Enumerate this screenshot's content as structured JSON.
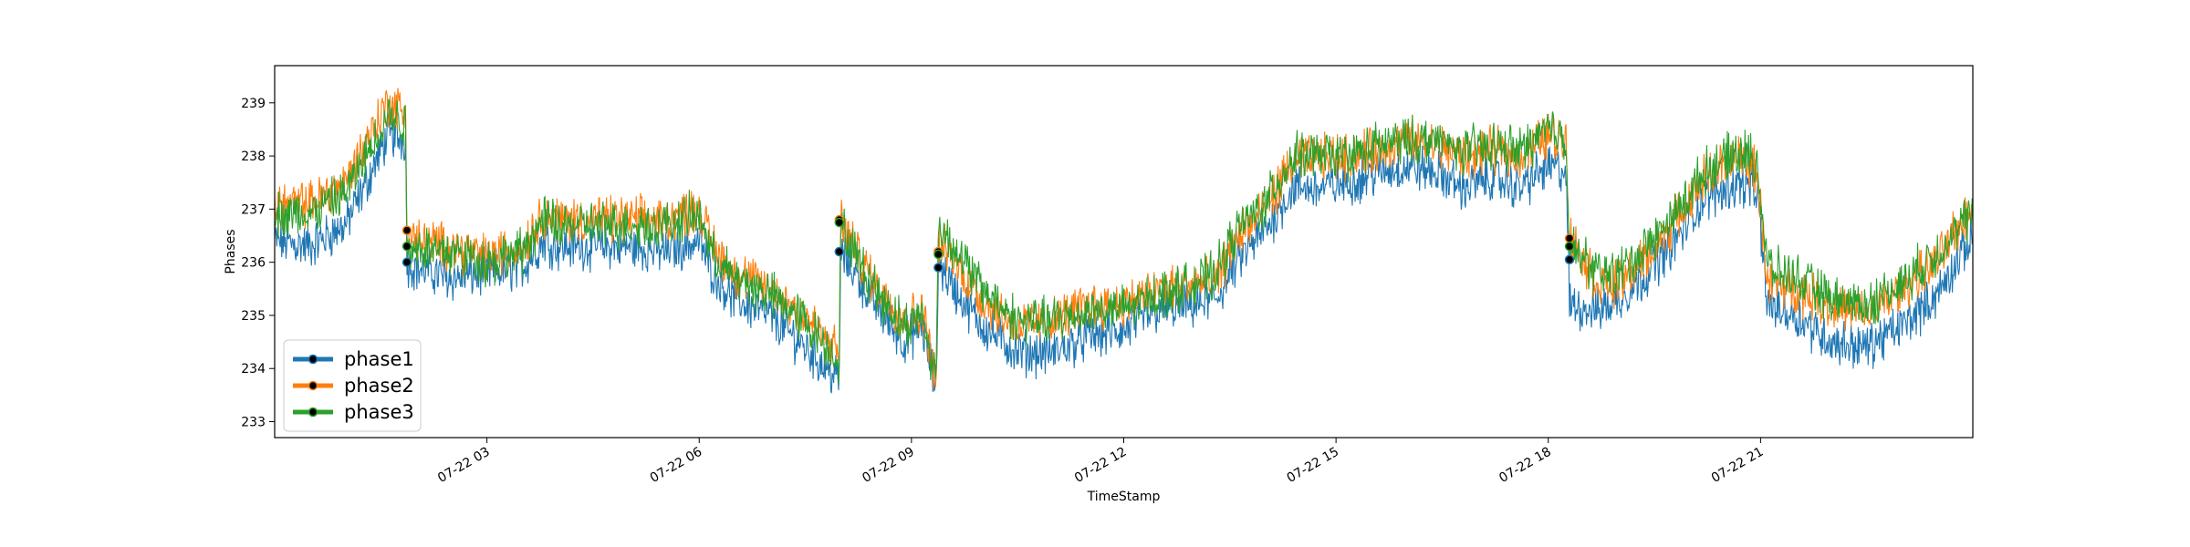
{
  "chart_data": {
    "type": "line",
    "title": "",
    "xlabel": "TimeStamp",
    "ylabel": "Phases",
    "x_tick_labels": [
      "07-22 03",
      "07-22 06",
      "07-22 09",
      "07-22 12",
      "07-22 15",
      "07-22 18",
      "07-22 21"
    ],
    "x_tick_hours": [
      3,
      6,
      9,
      12,
      15,
      18,
      21
    ],
    "xlim_hours": [
      0,
      24
    ],
    "y_ticks": [
      233,
      234,
      235,
      236,
      237,
      238,
      239
    ],
    "ylim": [
      232.7,
      239.7
    ],
    "grid": false,
    "legend_position": "lower-left",
    "series": [
      {
        "name": "phase1",
        "color": "#1f77b4",
        "x_hours": [
          0,
          0.5,
          1.0,
          1.3,
          1.6,
          1.85,
          1.87,
          2.0,
          2.5,
          3.0,
          3.5,
          3.8,
          4.0,
          4.5,
          5.0,
          5.5,
          6.0,
          6.2,
          6.5,
          7.0,
          7.5,
          7.8,
          7.98,
          8.0,
          8.3,
          8.6,
          8.9,
          9.15,
          9.35,
          9.38,
          9.6,
          10.0,
          10.5,
          11.0,
          11.5,
          12.0,
          12.5,
          13.0,
          13.3,
          13.6,
          14.0,
          14.4,
          14.8,
          15.2,
          15.6,
          16.0,
          16.4,
          16.8,
          17.2,
          17.6,
          18.0,
          18.25,
          18.3,
          18.7,
          19.0,
          19.4,
          19.8,
          20.2,
          20.7,
          20.95,
          21.1,
          21.5,
          22.0,
          22.5,
          23.0,
          23.5,
          24.0
        ],
        "values": [
          236.4,
          236.3,
          236.7,
          237.5,
          238.4,
          238.3,
          236.0,
          235.9,
          235.7,
          235.8,
          235.9,
          236.4,
          236.3,
          236.3,
          236.3,
          236.2,
          236.4,
          235.8,
          235.3,
          235.0,
          234.4,
          234.0,
          233.8,
          236.2,
          235.6,
          235.0,
          234.5,
          234.8,
          233.6,
          236.0,
          235.5,
          234.8,
          234.3,
          234.3,
          234.6,
          234.7,
          235.1,
          235.2,
          235.3,
          236.0,
          236.6,
          237.4,
          237.4,
          237.5,
          237.7,
          237.8,
          237.7,
          237.4,
          237.6,
          237.4,
          237.8,
          237.7,
          235.2,
          235.1,
          235.3,
          235.8,
          236.4,
          237.2,
          237.5,
          237.3,
          235.2,
          235.0,
          234.5,
          234.4,
          234.8,
          235.4,
          236.5
        ],
        "markers": [
          {
            "x_hour": 1.87,
            "value": 236.0
          },
          {
            "x_hour": 7.98,
            "value": 236.2
          },
          {
            "x_hour": 9.38,
            "value": 235.9
          },
          {
            "x_hour": 18.3,
            "value": 236.05
          }
        ]
      },
      {
        "name": "phase2",
        "color": "#ff7f0e",
        "x_hours": [
          0,
          0.5,
          1.0,
          1.3,
          1.6,
          1.85,
          1.87,
          2.0,
          2.5,
          3.0,
          3.5,
          3.8,
          4.0,
          4.5,
          5.0,
          5.5,
          6.0,
          6.2,
          6.5,
          7.0,
          7.5,
          7.8,
          7.98,
          8.0,
          8.3,
          8.6,
          8.9,
          9.15,
          9.35,
          9.38,
          9.6,
          10.0,
          10.5,
          11.0,
          11.5,
          12.0,
          12.5,
          13.0,
          13.3,
          13.6,
          14.0,
          14.4,
          14.8,
          15.2,
          15.6,
          16.0,
          16.4,
          16.8,
          17.2,
          17.6,
          18.0,
          18.25,
          18.3,
          18.7,
          19.0,
          19.4,
          19.8,
          20.2,
          20.7,
          20.95,
          21.1,
          21.5,
          22.0,
          22.5,
          23.0,
          23.5,
          24.0
        ],
        "values": [
          237.1,
          237.1,
          237.5,
          238.3,
          239.0,
          238.8,
          236.6,
          236.4,
          236.3,
          236.1,
          236.3,
          236.9,
          236.8,
          236.8,
          236.8,
          236.8,
          237.0,
          236.3,
          235.8,
          235.5,
          235.0,
          234.5,
          234.3,
          236.8,
          236.0,
          235.4,
          234.9,
          235.1,
          233.8,
          236.4,
          236.0,
          235.3,
          234.8,
          234.9,
          235.2,
          235.2,
          235.5,
          235.6,
          235.6,
          236.5,
          237.0,
          237.9,
          238.0,
          238.0,
          238.1,
          238.3,
          238.2,
          238.0,
          238.1,
          238.0,
          238.4,
          238.3,
          236.5,
          235.6,
          235.6,
          236.1,
          236.8,
          237.6,
          238.0,
          237.7,
          235.6,
          235.5,
          235.2,
          235.0,
          235.5,
          236.0,
          237.1
        ],
        "markers": [
          {
            "x_hour": 1.87,
            "value": 236.6
          },
          {
            "x_hour": 7.98,
            "value": 236.8
          },
          {
            "x_hour": 9.38,
            "value": 236.2
          },
          {
            "x_hour": 18.3,
            "value": 236.45
          }
        ]
      },
      {
        "name": "phase3",
        "color": "#2ca02c",
        "x_hours": [
          0,
          0.5,
          1.0,
          1.3,
          1.6,
          1.85,
          1.87,
          2.0,
          2.5,
          3.0,
          3.5,
          3.8,
          4.0,
          4.5,
          5.0,
          5.5,
          6.0,
          6.2,
          6.5,
          7.0,
          7.5,
          7.8,
          7.98,
          8.0,
          8.3,
          8.6,
          8.9,
          9.15,
          9.35,
          9.38,
          9.6,
          10.0,
          10.5,
          11.0,
          11.5,
          12.0,
          12.5,
          13.0,
          13.3,
          13.6,
          14.0,
          14.4,
          14.8,
          15.2,
          15.6,
          16.0,
          16.4,
          16.8,
          17.2,
          17.6,
          18.0,
          18.25,
          18.3,
          18.7,
          19.0,
          19.4,
          19.8,
          20.2,
          20.7,
          20.95,
          21.1,
          21.5,
          22.0,
          22.5,
          23.0,
          23.5,
          24.0
        ],
        "values": [
          236.9,
          236.9,
          237.3,
          238.0,
          238.8,
          238.6,
          236.3,
          236.3,
          236.2,
          236.0,
          236.2,
          236.8,
          236.7,
          236.7,
          236.7,
          236.7,
          236.9,
          236.1,
          235.7,
          235.4,
          234.9,
          234.4,
          234.2,
          236.7,
          235.9,
          235.3,
          234.8,
          235.0,
          233.8,
          236.7,
          236.3,
          235.5,
          234.9,
          234.9,
          235.1,
          235.1,
          235.4,
          235.6,
          235.8,
          236.6,
          237.1,
          238.0,
          238.0,
          238.0,
          238.2,
          238.3,
          238.3,
          238.1,
          238.2,
          238.1,
          238.5,
          238.4,
          236.3,
          235.8,
          235.8,
          236.3,
          236.9,
          237.7,
          238.1,
          237.9,
          235.9,
          235.7,
          235.3,
          235.2,
          235.6,
          236.2,
          236.9
        ],
        "markers": [
          {
            "x_hour": 1.87,
            "value": 236.3
          },
          {
            "x_hour": 7.98,
            "value": 236.75
          },
          {
            "x_hour": 9.38,
            "value": 236.15
          },
          {
            "x_hour": 18.3,
            "value": 236.3
          }
        ]
      }
    ]
  }
}
